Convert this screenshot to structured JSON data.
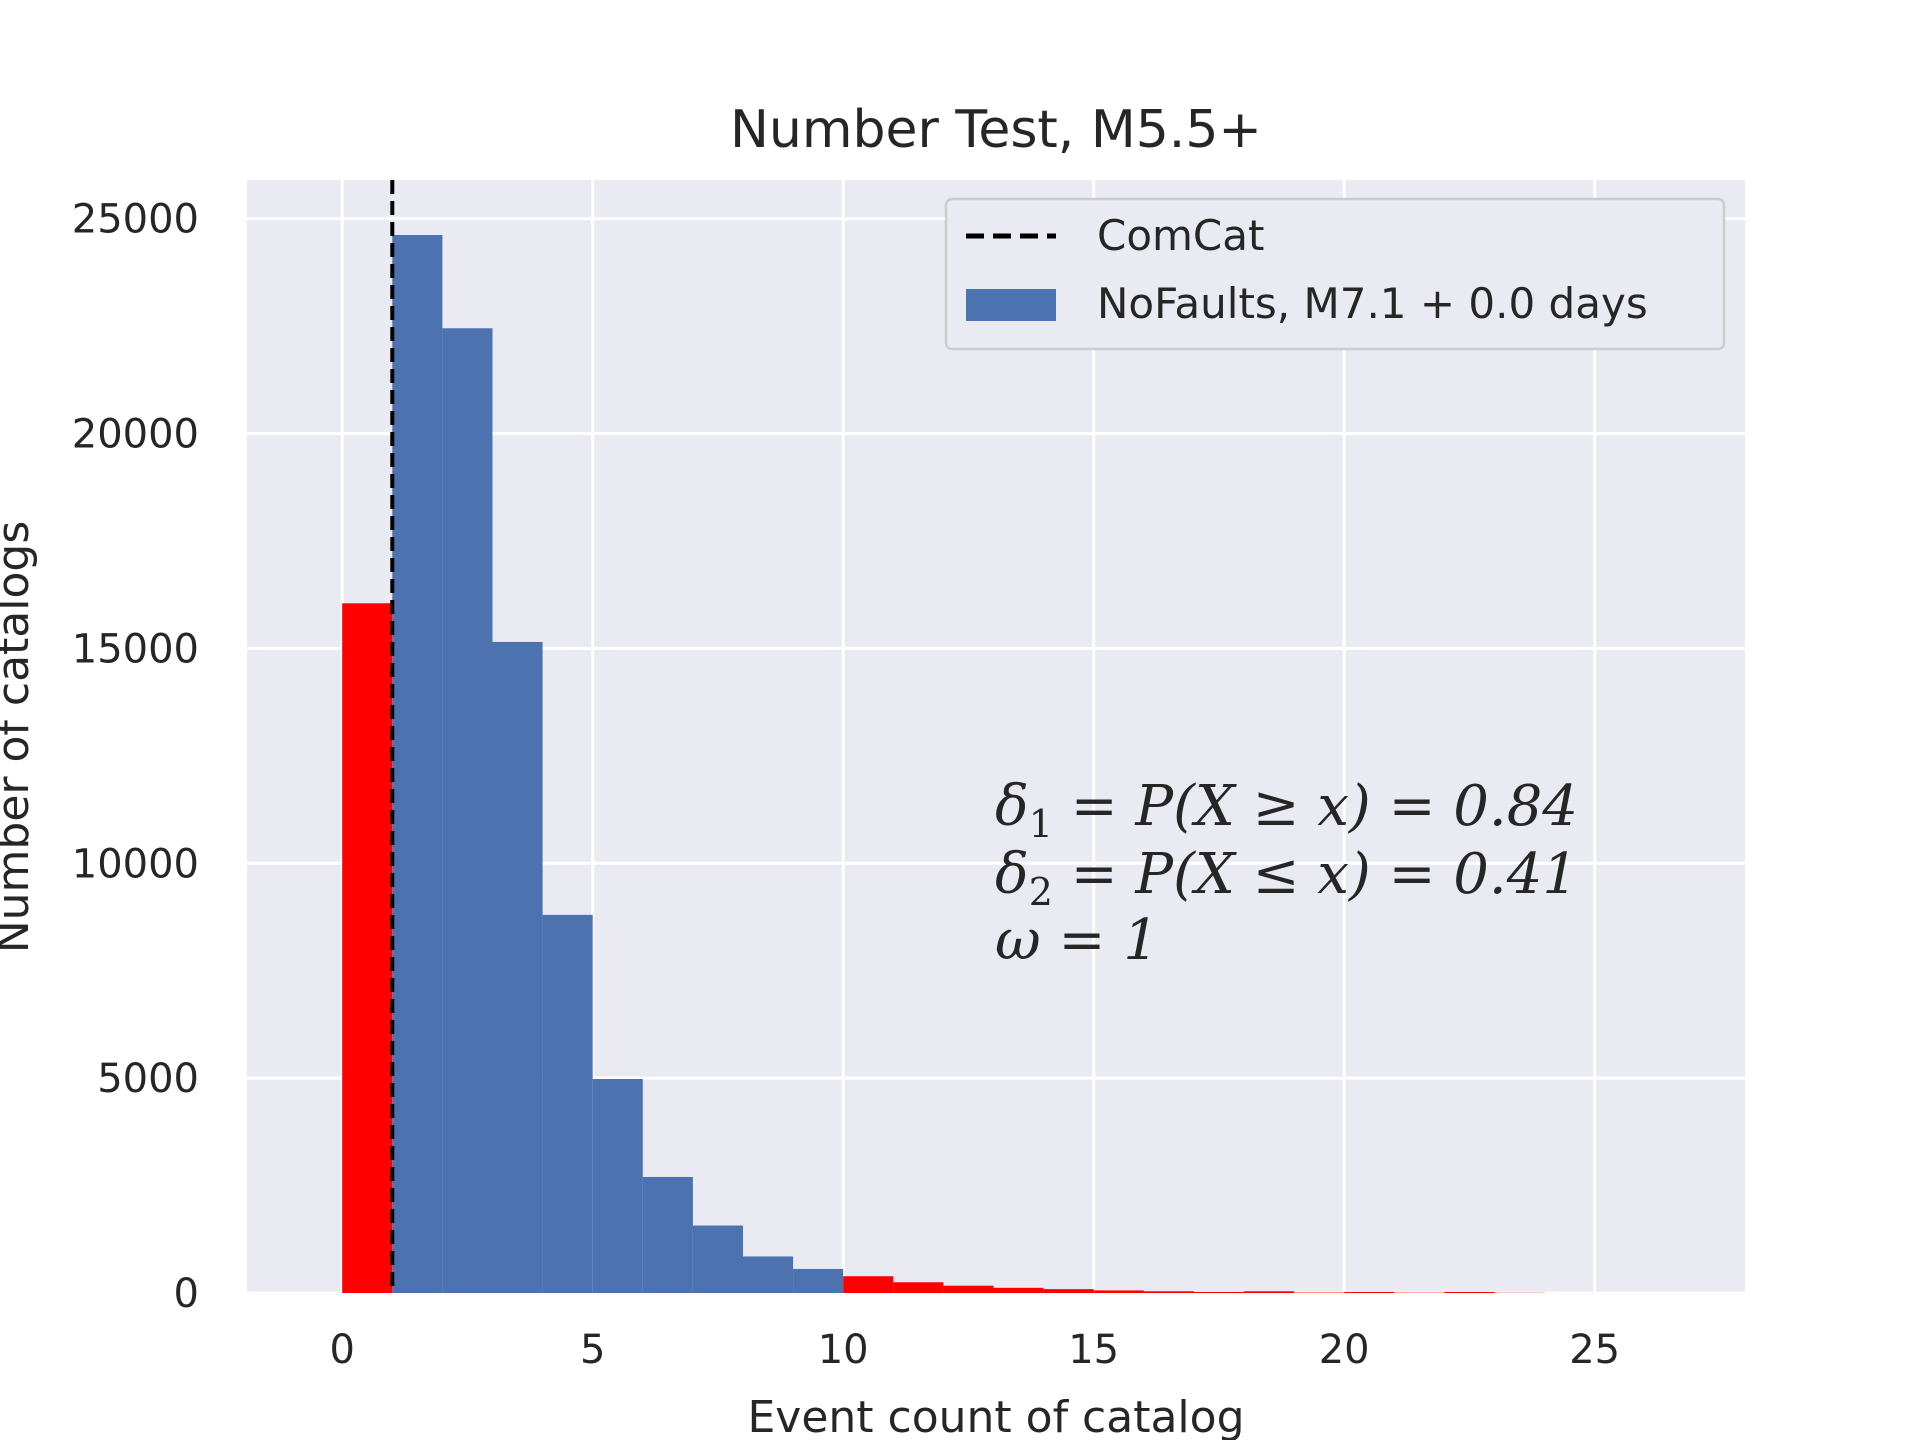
{
  "chart_data": {
    "type": "bar",
    "title": "Number Test, M5.5+",
    "xlabel": "Event count of catalog",
    "ylabel": "Number of catalogs",
    "xlim": [
      -1.9,
      28
    ],
    "ylim": [
      0,
      25900
    ],
    "x_ticks": [
      0,
      5,
      10,
      15,
      20,
      25
    ],
    "y_ticks": [
      0,
      5000,
      10000,
      15000,
      20000,
      25000
    ],
    "grid": true,
    "bin_width": 1,
    "bins": [
      {
        "x": 0,
        "value": 16050,
        "color": "#ff0000"
      },
      {
        "x": 1,
        "value": 24620,
        "color": "#4c72b0"
      },
      {
        "x": 2,
        "value": 22450,
        "color": "#4c72b0"
      },
      {
        "x": 3,
        "value": 15150,
        "color": "#4c72b0"
      },
      {
        "x": 4,
        "value": 8800,
        "color": "#4c72b0"
      },
      {
        "x": 5,
        "value": 4980,
        "color": "#4c72b0"
      },
      {
        "x": 6,
        "value": 2700,
        "color": "#4c72b0"
      },
      {
        "x": 7,
        "value": 1570,
        "color": "#4c72b0"
      },
      {
        "x": 8,
        "value": 850,
        "color": "#4c72b0"
      },
      {
        "x": 9,
        "value": 560,
        "color": "#4c72b0"
      },
      {
        "x": 10,
        "value": 390,
        "color": "#ff0000"
      },
      {
        "x": 11,
        "value": 250,
        "color": "#ff0000"
      },
      {
        "x": 12,
        "value": 170,
        "color": "#ff0000"
      },
      {
        "x": 13,
        "value": 120,
        "color": "#ff0000"
      },
      {
        "x": 14,
        "value": 90,
        "color": "#ff0000"
      },
      {
        "x": 15,
        "value": 60,
        "color": "#ff0000"
      },
      {
        "x": 16,
        "value": 40,
        "color": "#ff0000"
      },
      {
        "x": 17,
        "value": 25,
        "color": "#ff0000"
      },
      {
        "x": 18,
        "value": 40,
        "color": "#ff0000"
      },
      {
        "x": 19,
        "value": 10,
        "color": "#ff0000"
      },
      {
        "x": 20,
        "value": 25,
        "color": "#ff0000"
      },
      {
        "x": 21,
        "value": 8,
        "color": "#ff0000"
      },
      {
        "x": 22,
        "value": 25,
        "color": "#ff0000"
      },
      {
        "x": 23,
        "value": 5,
        "color": "#ff0000"
      }
    ],
    "observed": {
      "x": 1,
      "label": "ComCat",
      "style": "dashed",
      "color": "#000000"
    },
    "series": [
      {
        "name": "NoFaults, M7.1 + 0.0 days",
        "color": "#4c72b0"
      }
    ],
    "legend_position": "top-right",
    "annotations": [
      {
        "base": "δ",
        "sub": "1",
        "rest": " = P(X ≥ x) = 0.84"
      },
      {
        "base": "δ",
        "sub": "2",
        "rest": " = P(X ≤ x) = 0.41"
      },
      {
        "base": "ω",
        "sub": "",
        "rest": " = 1"
      }
    ],
    "colors": {
      "background": "#eaeaf2",
      "grid": "#ffffff",
      "in_range": "#4c72b0",
      "out_of_range": "#ff0000"
    }
  }
}
